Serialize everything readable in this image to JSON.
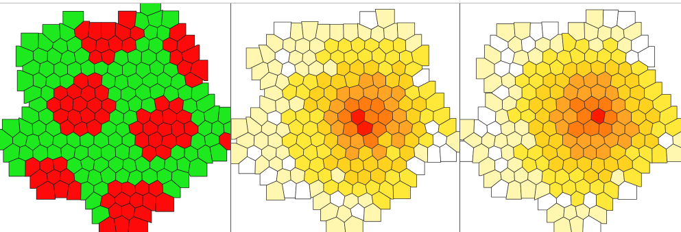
{
  "panels": [
    {
      "id": "panel-1",
      "scheme": "binary",
      "colors": {
        "a": "#ff0a0a",
        "b": "#1ee81e",
        "edge": "#1a1a1a"
      },
      "show_numbers": false
    },
    {
      "id": "panel-2",
      "scheme": "heat",
      "colors": {
        "0": "#ffffff",
        "1": "#fff7b0",
        "2": "#ffe838",
        "3": "#ffd21f",
        "4": "#ffa424",
        "5": "#ff7c10",
        "6": "#ff1a00",
        "edge": "#333333"
      },
      "show_numbers": true
    },
    {
      "id": "panel-3",
      "scheme": "heat",
      "colors": {
        "0": "#ffffff",
        "1": "#fff7b0",
        "2": "#ffe838",
        "3": "#ffd21f",
        "4": "#ffa424",
        "5": "#ff7c10",
        "6": "#ff1a00",
        "edge": "#333333"
      },
      "show_numbers": true
    }
  ]
}
